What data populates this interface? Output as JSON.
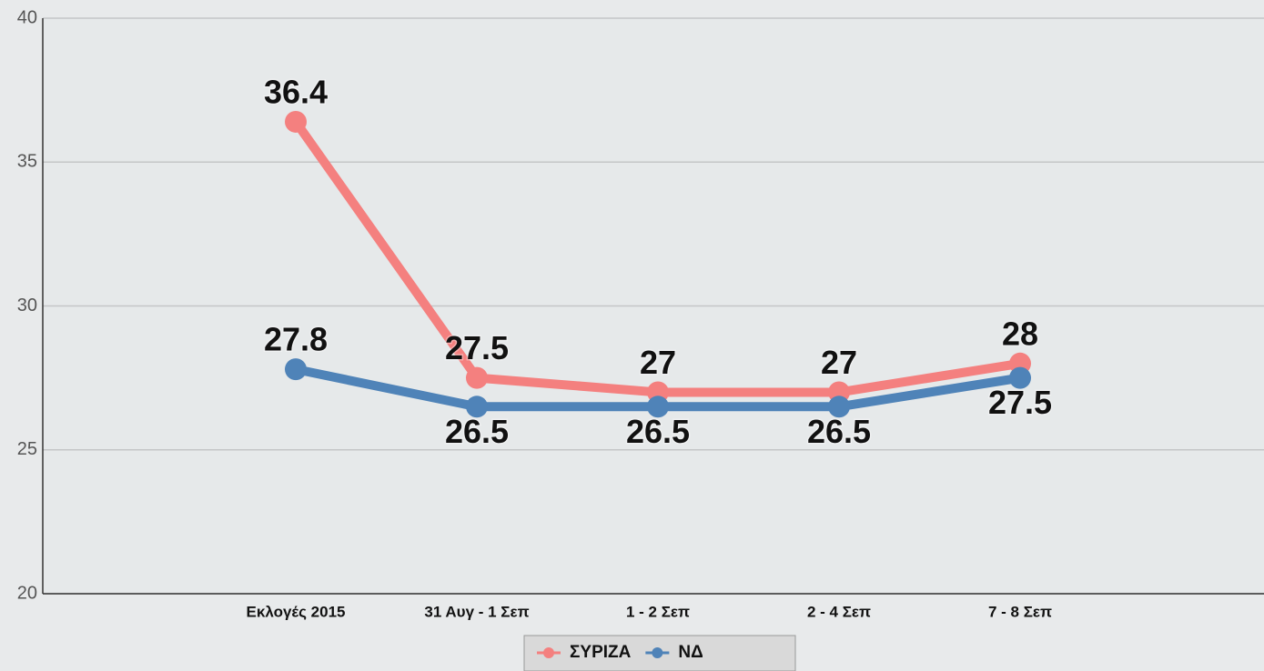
{
  "chart_data": {
    "type": "line",
    "categories": [
      "Εκλογές 2015",
      "31 Αυγ - 1 Σεπ",
      "1 - 2 Σεπ",
      "2 - 4 Σεπ",
      "7 - 8 Σεπ"
    ],
    "series": [
      {
        "name": "ΣΥΡΙΖΑ",
        "color": "#f4807f",
        "values": [
          36.4,
          27.5,
          27,
          27,
          28
        ]
      },
      {
        "name": "ΝΔ",
        "color": "#4f83b8",
        "values": [
          27.8,
          26.5,
          26.5,
          26.5,
          27.5
        ]
      }
    ],
    "ylim": [
      20,
      40
    ],
    "yticks": [
      20,
      25,
      30,
      35,
      40
    ],
    "grid": true,
    "legend": "bottom"
  }
}
